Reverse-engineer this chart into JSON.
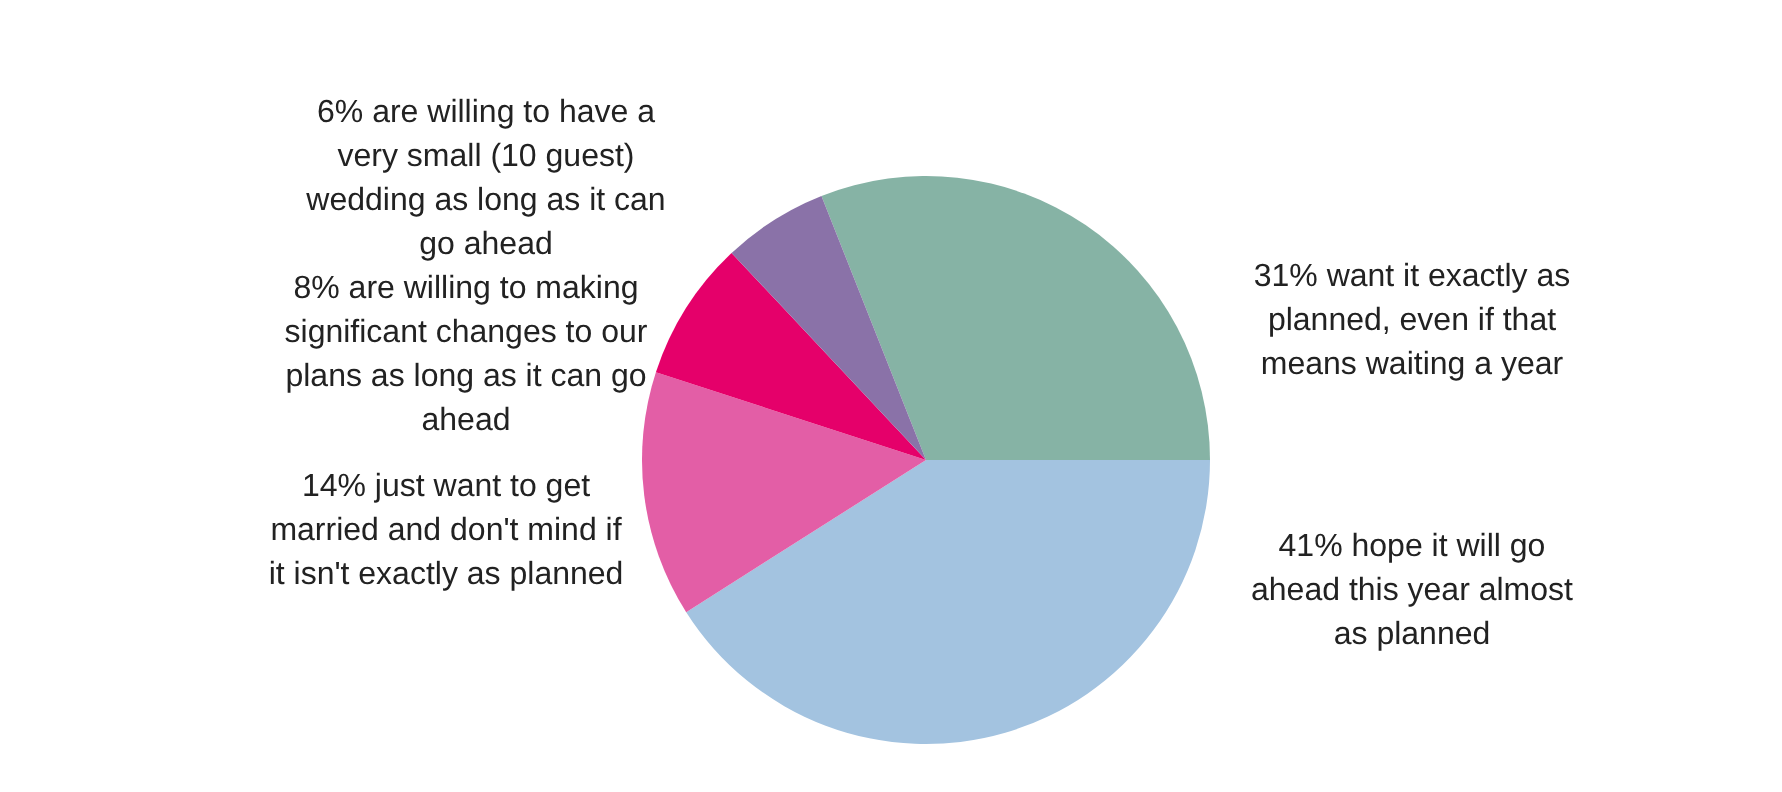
{
  "chart_data": {
    "type": "pie",
    "categories": [
      "31% want it exactly as planned, even if that means waiting a year",
      "41% hope it will go ahead this year almost as planned",
      "14% just want to get married and don't mind if it isn't exactly as planned",
      "8% are willing to making significant changes to our plans as long as it can go ahead",
      "6% are willing to have a very small (10 guest) wedding as long as it can go ahead"
    ],
    "values": [
      31,
      41,
      14,
      8,
      6
    ],
    "colors": [
      "#86b3a5",
      "#a3c3e0",
      "#e35ea6",
      "#e5006a",
      "#8a72a8"
    ]
  }
}
